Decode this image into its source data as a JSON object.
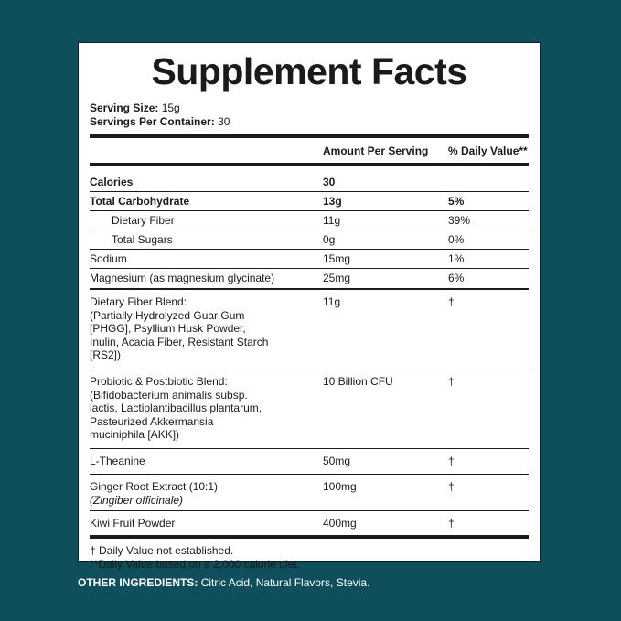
{
  "title": "Supplement Facts",
  "serving": {
    "size_label": "Serving Size:",
    "size_value": "15g",
    "per_container_label": "Servings Per Container:",
    "per_container_value": "30"
  },
  "header": {
    "amount": "Amount Per Serving",
    "dv": "% Daily Value**"
  },
  "rows": [
    {
      "name": "Calories",
      "amount": "30",
      "dv": ""
    },
    {
      "name": "Total Carbohydrate",
      "amount": "13g",
      "dv": "5%"
    },
    {
      "name": "Dietary Fiber",
      "amount": "11g",
      "dv": "39%"
    },
    {
      "name": "Total Sugars",
      "amount": "0g",
      "dv": "0%"
    },
    {
      "name": "Sodium",
      "amount": "15mg",
      "dv": "1%"
    },
    {
      "name": "Magnesium (as magnesium glycinate)",
      "amount": "25mg",
      "dv": "6%"
    }
  ],
  "blends": [
    {
      "lines": [
        "Dietary Fiber Blend:",
        "(Partially Hydrolyzed Guar Gum",
        "[PHGG], Psyllium Husk Powder,",
        "Inulin, Acacia Fiber, Resistant Starch",
        "[RS2])"
      ],
      "amount": "11g",
      "dv": "†"
    },
    {
      "lines": [
        "Probiotic & Postbiotic Blend:",
        "(Bifidobacterium animalis subsp.",
        "lactis, Lactiplantibacillus plantarum,",
        "Pasteurized Akkermansia",
        "muciniphila [AKK])"
      ],
      "amount": "10 Billion CFU",
      "dv": "†"
    },
    {
      "lines": [
        "L-Theanine"
      ],
      "amount": "50mg",
      "dv": "†"
    },
    {
      "lines": [
        "Ginger Root Extract (10:1)"
      ],
      "italic": "(Zingiber officinale)",
      "amount": "100mg",
      "dv": "†"
    },
    {
      "lines": [
        "Kiwi Fruit Powder"
      ],
      "amount": "400mg",
      "dv": "†"
    }
  ],
  "footnotes": [
    "† Daily Value not established.",
    "**Daily Value based on a 2,000 calorie diet."
  ],
  "other_ingredients": {
    "label": "OTHER INGREDIENTS:",
    "value": "Citric Acid, Natural Flavors, Stevia."
  }
}
